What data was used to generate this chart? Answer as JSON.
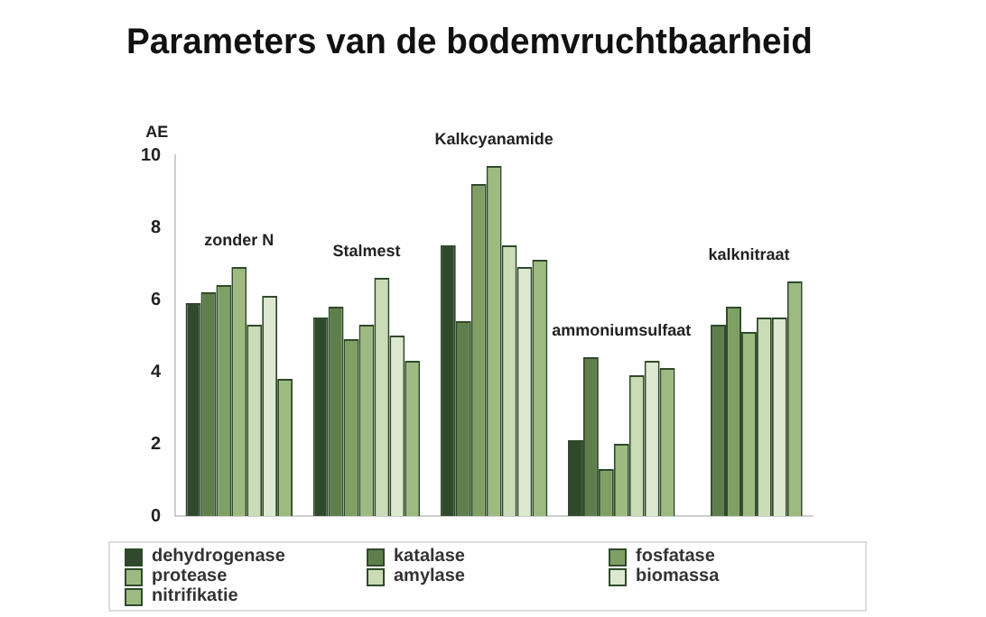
{
  "chart_data": {
    "type": "bar",
    "title": "Parameters van de bodemvruchtbaarheid",
    "ylabel": "AE",
    "categories": [
      "zonder N",
      "Stalmest",
      "Kalkcyanamide",
      "ammoniumsulfaat",
      "kalknitraat"
    ],
    "series": [
      {
        "name": "dehydrogenase",
        "color": "#2f4a2a",
        "values": [
          5.9,
          5.5,
          7.5,
          2.1,
          null
        ]
      },
      {
        "name": "katalase",
        "color": "#5e7f4c",
        "values": [
          6.2,
          5.8,
          5.4,
          4.4,
          5.3
        ]
      },
      {
        "name": "fosfatase",
        "color": "#7fa064",
        "values": [
          6.4,
          4.9,
          9.2,
          1.3,
          5.8
        ]
      },
      {
        "name": "protease",
        "color": "#9dbb80",
        "values": [
          6.9,
          5.3,
          9.7,
          2.0,
          5.1
        ]
      },
      {
        "name": "amylase",
        "color": "#c9dcb6",
        "values": [
          5.3,
          6.6,
          7.5,
          3.9,
          5.5
        ]
      },
      {
        "name": "biomassa",
        "color": "#dce8cf",
        "values": [
          6.1,
          5.0,
          6.9,
          4.3,
          5.5
        ]
      },
      {
        "name": "nitrifikatie",
        "color": "#9dbb80",
        "values": [
          3.8,
          4.3,
          7.1,
          4.1,
          6.5
        ]
      }
    ],
    "ylim": [
      0,
      10
    ],
    "yticks": [
      0,
      2,
      4,
      6,
      8,
      10
    ],
    "grid": false,
    "legend": "bottom"
  }
}
